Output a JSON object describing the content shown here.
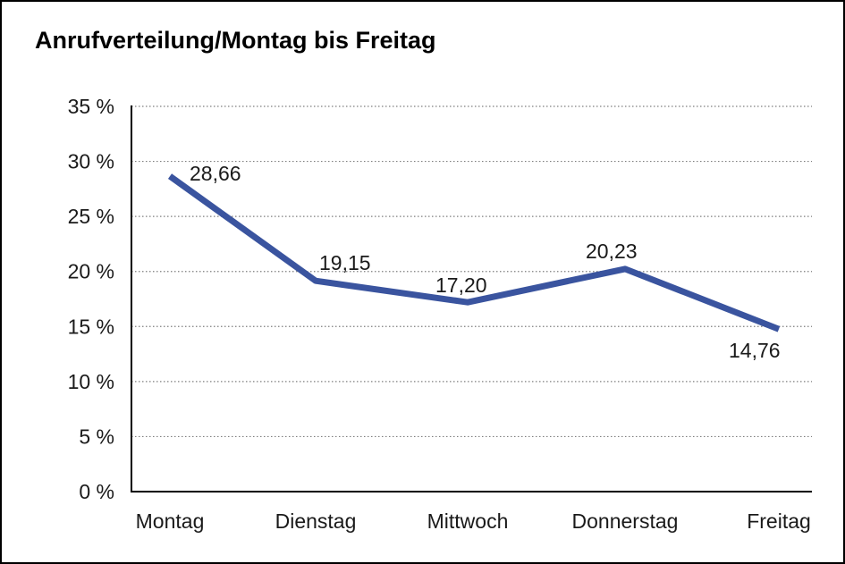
{
  "chart_data": {
    "type": "line",
    "title": "Anrufverteilung/Montag bis Freitag",
    "categories": [
      "Montag",
      "Dienstag",
      "Mittwoch",
      "Donnerstag",
      "Freitag"
    ],
    "values": [
      28.66,
      19.15,
      17.2,
      20.23,
      14.76
    ],
    "point_labels": [
      "28,66",
      "19,15",
      "17,20",
      "20,23",
      "14,76"
    ],
    "xlabel": "",
    "ylabel": "",
    "ylim": [
      0,
      35
    ],
    "ytick_values": [
      0,
      5,
      10,
      15,
      20,
      25,
      30,
      35
    ],
    "ytick_labels": [
      "0 %",
      "5 %",
      "10 %",
      "15 %",
      "20 %",
      "25 %",
      "30 %",
      "35 %"
    ],
    "grid": "horizontal-dotted",
    "legend_position": "none",
    "line_color": "#3A549F",
    "text_color": "#1a1a1a",
    "decimal_separator": ","
  }
}
